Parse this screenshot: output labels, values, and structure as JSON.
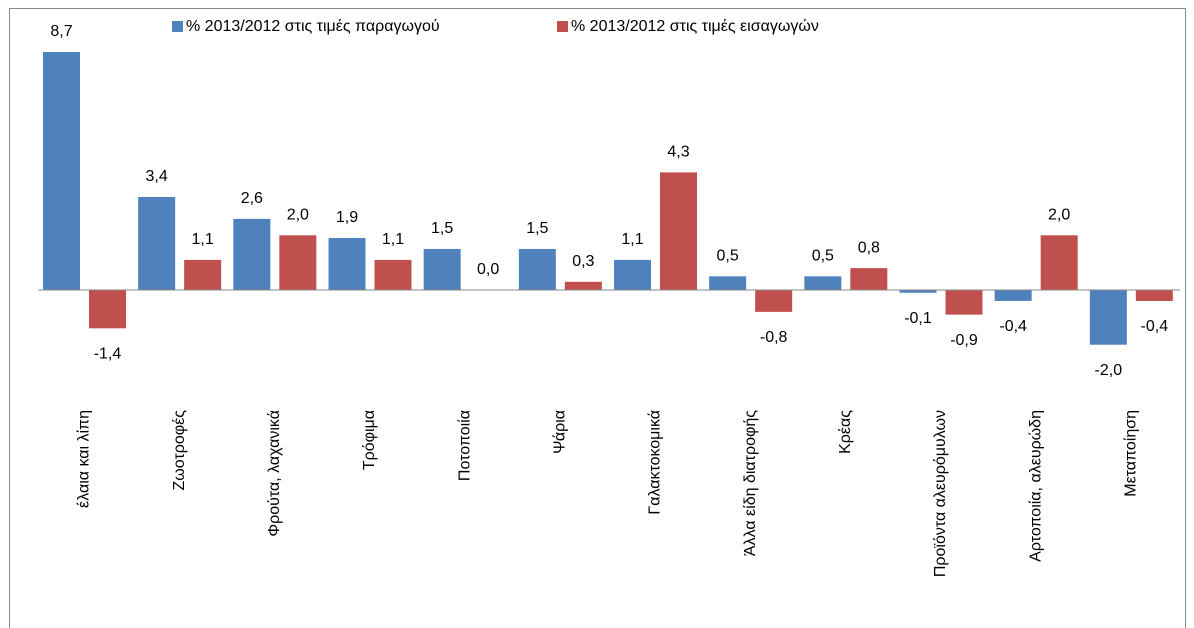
{
  "chart_data": {
    "type": "bar",
    "categories": [
      "έλαια και λίπη",
      "Ζωοτροφές",
      "Φρούτα, λαχανικά",
      "Τρόφιμα",
      "Ποτοποιία",
      "Ψάρια",
      "Γαλακτοκομικά",
      "Άλλα είδη διατροφής",
      "Κρέας",
      "Προϊόντα αλευρόμυλων",
      "Αρτοποιία, αλευρώδη",
      "Μεταποίηση"
    ],
    "series": [
      {
        "name": "% 2013/2012 στις τιμές παραγωγού",
        "color": "#4f81bd",
        "values": [
          8.7,
          3.4,
          2.6,
          1.9,
          1.5,
          1.5,
          1.1,
          0.5,
          0.5,
          -0.1,
          -0.4,
          -2.0
        ],
        "value_labels": [
          "8,7",
          "3,4",
          "2,6",
          "1,9",
          "1,5",
          "1,5",
          "1,1",
          "0,5",
          "0,5",
          "-0,1",
          "-0,4",
          "-2,0"
        ]
      },
      {
        "name": "% 2013/2012 στις τιμές εισαγωγών",
        "color": "#c0504d",
        "values": [
          -1.4,
          1.1,
          2.0,
          1.1,
          0.0,
          0.3,
          4.3,
          -0.8,
          0.8,
          -0.9,
          2.0,
          -0.4
        ],
        "value_labels": [
          "-1,4",
          "1,1",
          "2,0",
          "1,1",
          "0,0",
          "0,3",
          "4,3",
          "-0,8",
          "0,8",
          "-0,9",
          "2,0",
          "-0,4"
        ]
      }
    ]
  }
}
